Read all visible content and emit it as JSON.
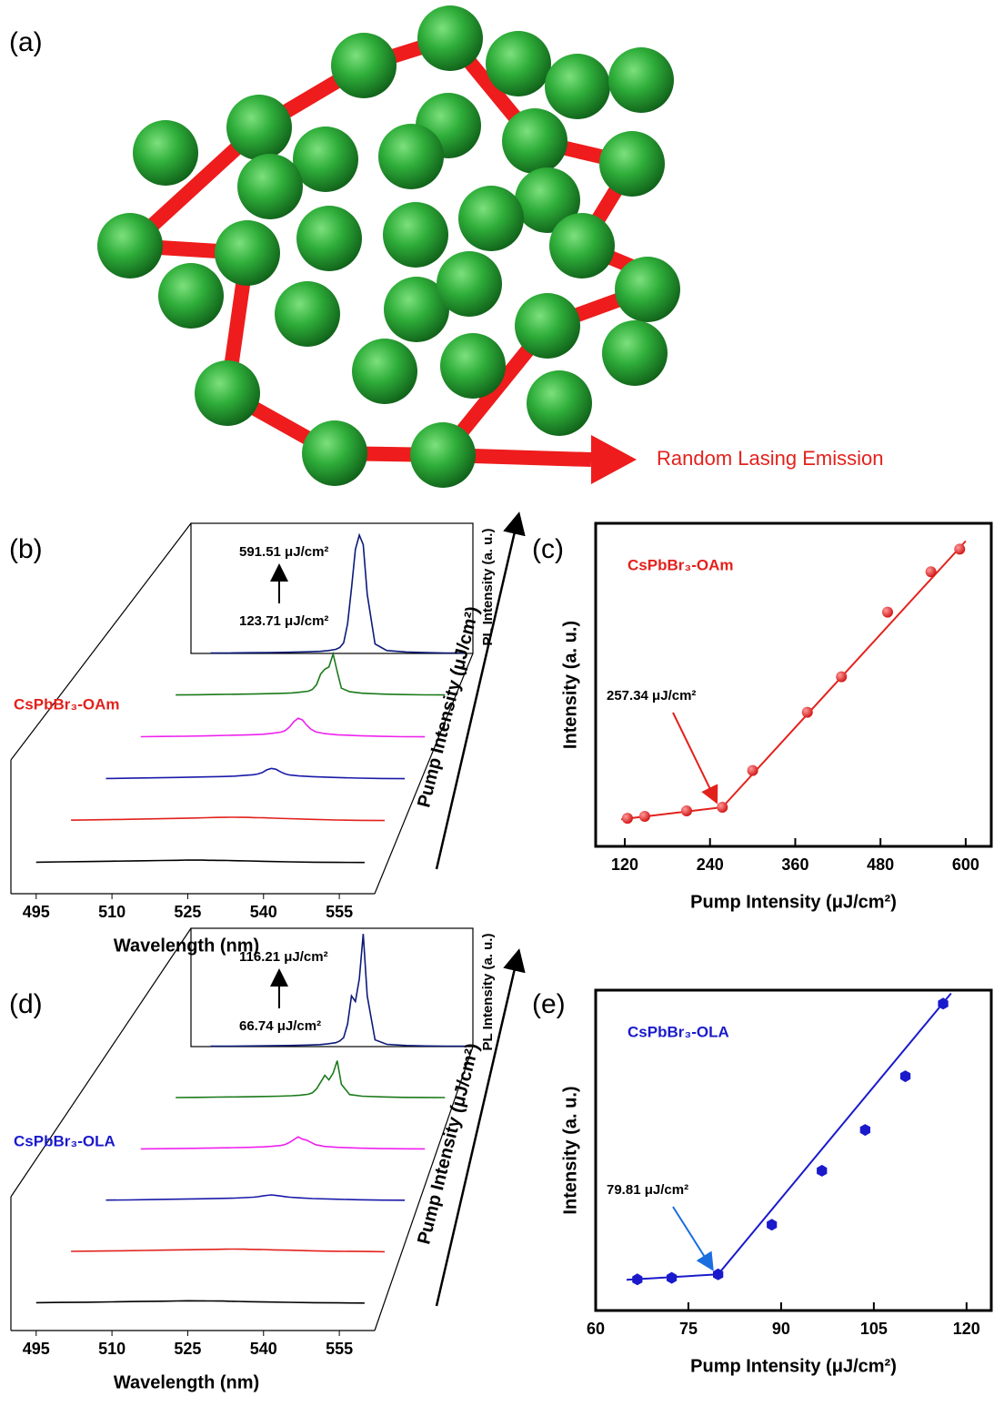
{
  "panel_labels": [
    "(a)",
    "(b)",
    "(c)",
    "(d)",
    "(e)"
  ],
  "diagram": {
    "caption": "Random Lasing Emission"
  },
  "chart_data": [
    {
      "type": "waterfall",
      "sample": "CsPbBr₃-OAm",
      "sample_color": "#e3211c",
      "x_label": "Wavelength (nm)",
      "y_label": "PL Intensity (a. u.)",
      "z_label": "Pump Intensity (μJ/cm²)",
      "annotations": [
        "591.51 μJ/cm²",
        "123.71 μJ/cm²"
      ],
      "x": [
        495,
        500,
        505,
        510,
        515,
        520,
        523,
        525,
        527,
        528,
        529,
        530,
        531,
        532,
        533,
        534,
        535,
        537,
        540,
        545,
        550,
        555,
        560
      ],
      "xlim": [
        490,
        562
      ],
      "xticks": [
        495,
        510,
        525,
        540,
        555
      ],
      "ylim": [
        0,
        110
      ],
      "series": [
        {
          "color": "#000000",
          "values": [
            0.5,
            0.8,
            1.0,
            1.3,
            1.6,
            1.9,
            2.1,
            2.3,
            2.2,
            2.2,
            2.1,
            2.1,
            2.0,
            2.0,
            1.9,
            1.8,
            1.7,
            1.5,
            1.2,
            0.8,
            0.5,
            0.3,
            0.2
          ]
        },
        {
          "color": "#e3211c",
          "values": [
            0.6,
            0.9,
            1.2,
            1.6,
            2.0,
            2.4,
            2.7,
            2.9,
            3.0,
            3.1,
            3.1,
            3.0,
            3.0,
            2.9,
            2.8,
            2.7,
            2.6,
            2.3,
            1.9,
            1.3,
            0.8,
            0.5,
            0.3
          ]
        },
        {
          "color": "#1a1aa8",
          "values": [
            0.5,
            0.7,
            1.0,
            1.3,
            1.7,
            2.1,
            2.5,
            3.0,
            3.6,
            4.2,
            5.5,
            7.8,
            9.0,
            8.2,
            6.0,
            4.3,
            3.4,
            2.6,
            2.0,
            1.3,
            0.8,
            0.5,
            0.3
          ]
        },
        {
          "color": "#ee22ee",
          "values": [
            0.4,
            0.6,
            0.8,
            1.1,
            1.5,
            2.0,
            2.5,
            3.2,
            4.2,
            5.5,
            8.5,
            13.0,
            16.0,
            14.5,
            10.0,
            6.5,
            4.5,
            3.0,
            2.0,
            1.2,
            0.7,
            0.4,
            0.3
          ]
        },
        {
          "color": "#1a7a1a",
          "values": [
            0.3,
            0.5,
            0.7,
            0.9,
            1.2,
            1.6,
            2.0,
            2.6,
            3.5,
            5.0,
            9.0,
            18.0,
            22.0,
            24.0,
            35.0,
            20.0,
            6.0,
            3.0,
            1.8,
            1.0,
            0.6,
            0.4,
            0.3
          ]
        },
        {
          "color": "#0c1a7a",
          "values": [
            0.3,
            0.4,
            0.6,
            0.8,
            1.0,
            1.4,
            1.8,
            2.4,
            3.5,
            5.0,
            9.0,
            25.0,
            55.0,
            88.0,
            100.0,
            92.0,
            50.0,
            8.0,
            2.5,
            1.2,
            0.7,
            0.4,
            0.3
          ]
        }
      ]
    },
    {
      "type": "scatter",
      "sample": "CsPbBr₃-OAm",
      "annotation": "257.34 μJ/cm²",
      "marker": "circle",
      "color": "#e3211c",
      "x_label": "Pump Intensity (μJ/cm²)",
      "y_label": "Intensity (a. u.)",
      "x": [
        123.71,
        148,
        207,
        257.34,
        300,
        377,
        425,
        490,
        551,
        591.51
      ],
      "values": [
        8.7,
        9.3,
        11.0,
        12.1,
        23.5,
        41.5,
        52.5,
        72.5,
        85.0,
        92.0
      ],
      "threshold_index": 3,
      "fit": [
        {
          "x": [
            115,
            257.34
          ],
          "values": [
            8.4,
            12.1
          ]
        },
        {
          "x": [
            257.34,
            600
          ],
          "values": [
            12.1,
            94.5
          ]
        }
      ],
      "xlim": [
        79,
        636
      ],
      "xticks": [
        120,
        240,
        360,
        480,
        600
      ],
      "ylim": [
        0,
        100
      ]
    },
    {
      "type": "waterfall",
      "sample": "CsPbBr₃-OLA",
      "sample_color": "#1a1acc",
      "x_label": "Wavelength (nm)",
      "y_label": "PL Intensity (a. u.)",
      "z_label": "Pump Intensity (μJ/cm²)",
      "annotations": [
        "116.21 μJ/cm²",
        "66.74 μJ/cm²"
      ],
      "x": [
        495,
        500,
        505,
        510,
        515,
        520,
        523,
        525,
        527,
        528,
        529,
        530,
        531,
        532,
        533,
        534,
        535,
        537,
        540,
        545,
        550,
        555,
        560
      ],
      "xlim": [
        490,
        562
      ],
      "xticks": [
        495,
        510,
        525,
        540,
        555
      ],
      "ylim": [
        0,
        105
      ],
      "series": [
        {
          "color": "#000000",
          "values": [
            0.5,
            0.7,
            0.9,
            1.2,
            1.5,
            1.8,
            2.0,
            2.2,
            2.1,
            2.1,
            2.0,
            2.0,
            1.9,
            1.9,
            1.8,
            1.7,
            1.6,
            1.4,
            1.1,
            0.8,
            0.5,
            0.3,
            0.2
          ]
        },
        {
          "color": "#e3211c",
          "values": [
            0.5,
            0.7,
            1.0,
            1.3,
            1.6,
            1.9,
            2.2,
            2.3,
            2.4,
            2.5,
            2.5,
            2.4,
            2.4,
            2.3,
            2.2,
            2.2,
            2.1,
            1.8,
            1.5,
            1.0,
            0.6,
            0.4,
            0.2
          ]
        },
        {
          "color": "#1a1aa8",
          "values": [
            0.4,
            0.6,
            0.9,
            1.2,
            1.5,
            1.9,
            2.2,
            2.6,
            3.0,
            3.4,
            4.0,
            4.6,
            5.0,
            4.5,
            4.0,
            3.5,
            3.0,
            2.4,
            1.8,
            1.2,
            0.7,
            0.4,
            0.3
          ]
        },
        {
          "color": "#ee22ee",
          "values": [
            0.3,
            0.5,
            0.7,
            1.0,
            1.3,
            1.7,
            2.1,
            2.6,
            3.3,
            4.2,
            6.0,
            8.5,
            11.0,
            9.0,
            8.0,
            6.0,
            4.0,
            2.5,
            1.7,
            1.0,
            0.6,
            0.4,
            0.3
          ]
        },
        {
          "color": "#1a7a1a",
          "values": [
            0.3,
            0.5,
            0.7,
            0.9,
            1.2,
            1.5,
            1.9,
            2.4,
            3.2,
            4.5,
            8.0,
            14.0,
            20.0,
            16.0,
            22.0,
            33.0,
            12.0,
            3.0,
            1.5,
            0.9,
            0.5,
            0.4,
            0.3
          ]
        },
        {
          "color": "#0c1a7a",
          "values": [
            0.3,
            0.4,
            0.6,
            0.8,
            1.0,
            1.4,
            1.8,
            2.5,
            3.5,
            5.0,
            8.0,
            20.0,
            45.0,
            40.0,
            60.0,
            100.0,
            45.0,
            6.0,
            2.0,
            1.0,
            0.6,
            0.4,
            0.3
          ]
        }
      ]
    },
    {
      "type": "scatter",
      "sample": "CsPbBr₃-OLA",
      "annotation": "79.81 μJ/cm²",
      "marker": "hexagon",
      "color": "#1a1acc",
      "x_label": "Pump Intensity (μJ/cm²)",
      "y_label": "Intensity (a. u.)",
      "x": [
        66.74,
        72.3,
        79.81,
        88.5,
        96.6,
        103.6,
        110.1,
        116.21
      ],
      "values": [
        9.9,
        10.4,
        11.5,
        27.3,
        44.5,
        57.5,
        74.6,
        97.7
      ],
      "threshold_index": 2,
      "fit": [
        {
          "x": [
            65,
            79.81
          ],
          "values": [
            9.8,
            11.5
          ]
        },
        {
          "x": [
            79.81,
            117.5
          ],
          "values": [
            11.5,
            101
          ]
        }
      ],
      "xlim": [
        60,
        124
      ],
      "xticks": [
        60,
        75,
        90,
        105,
        120
      ],
      "ylim": [
        0,
        102
      ]
    }
  ]
}
